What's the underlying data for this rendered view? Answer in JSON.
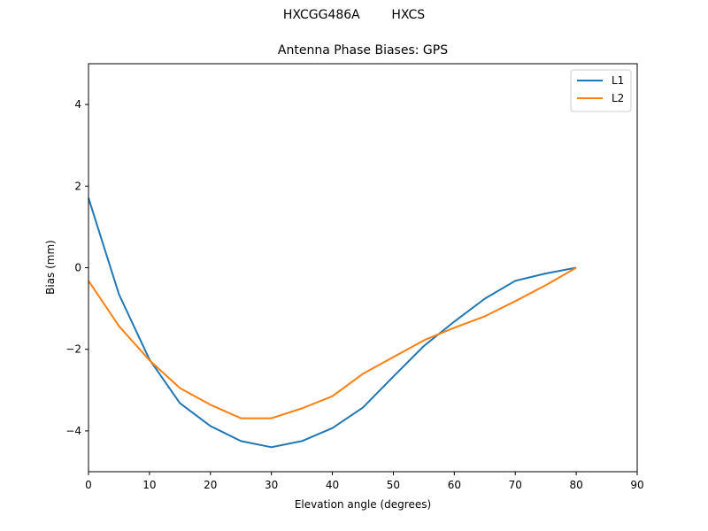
{
  "figure": {
    "suptitle": "HXCGG486A        HXCS",
    "title": "Antenna Phase Biases: GPS"
  },
  "chart_data": {
    "type": "line",
    "title": "Antenna Phase Biases: GPS",
    "suptitle": "HXCGG486A        HXCS",
    "xlabel": "Elevation angle (degrees)",
    "ylabel": "Bias (mm)",
    "xlim": [
      0,
      90
    ],
    "ylim": [
      -5,
      5
    ],
    "xticks": [
      0,
      10,
      20,
      30,
      40,
      50,
      60,
      70,
      80,
      90
    ],
    "yticks": [
      -4,
      -2,
      0,
      2,
      4
    ],
    "ytick_labels": [
      "−4",
      "−2",
      "0",
      "2",
      "4"
    ],
    "grid": false,
    "legend_position": "upper right",
    "x": [
      0,
      5,
      10,
      15,
      20,
      25,
      30,
      35,
      40,
      45,
      50,
      55,
      60,
      65,
      70,
      75,
      80
    ],
    "series": [
      {
        "name": "L1",
        "color": "#1f77b4",
        "values": [
          1.71,
          -0.65,
          -2.25,
          -3.32,
          -3.88,
          -4.25,
          -4.4,
          -4.25,
          -3.93,
          -3.43,
          -2.67,
          -1.92,
          -1.32,
          -0.76,
          -0.32,
          -0.14,
          0.0
        ]
      },
      {
        "name": "L2",
        "color": "#ff7f0e",
        "values": [
          -0.32,
          -1.43,
          -2.27,
          -2.95,
          -3.36,
          -3.69,
          -3.69,
          -3.45,
          -3.15,
          -2.6,
          -2.19,
          -1.78,
          -1.47,
          -1.19,
          -0.82,
          -0.43,
          0.0
        ]
      }
    ]
  }
}
